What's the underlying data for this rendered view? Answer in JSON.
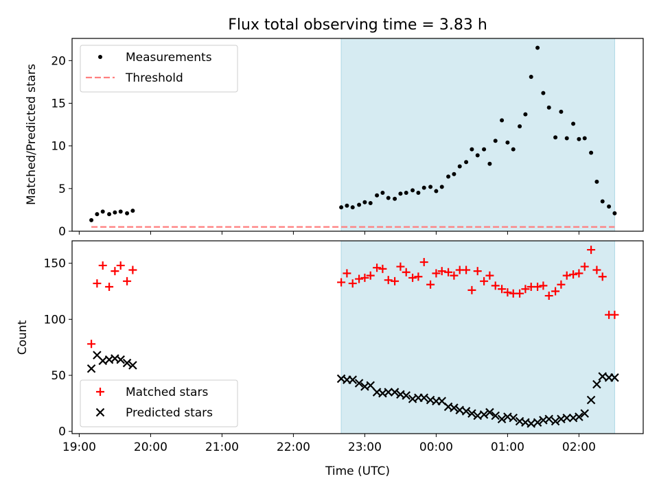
{
  "title": "Flux total observing time = 3.83 h",
  "colors": {
    "shade": "#add8e6",
    "threshold": "#ff7f7f",
    "measurements": "#000000",
    "matched": "#ff0000",
    "predicted": "#000000"
  },
  "chart_data": [
    {
      "type": "scatter",
      "panel": "top",
      "title": "Flux total observing time = 3.83 h",
      "xlabel": "",
      "ylabel": "Matched/Predicted stars",
      "xlim": [
        18.9,
        26.9
      ],
      "ylim": [
        0,
        22.6
      ],
      "yticks": [
        0,
        5,
        10,
        15,
        20
      ],
      "legend": "top-left",
      "shaded_interval": [
        22.67,
        26.5
      ],
      "series": [
        {
          "name": "Measurements",
          "marker": "dot",
          "x": [
            19.17,
            19.25,
            19.33,
            19.42,
            19.5,
            19.58,
            19.67,
            19.75,
            22.67,
            22.75,
            22.83,
            22.92,
            23.0,
            23.08,
            23.17,
            23.25,
            23.33,
            23.42,
            23.5,
            23.58,
            23.67,
            23.75,
            23.83,
            23.92,
            24.0,
            24.08,
            24.17,
            24.25,
            24.33,
            24.42,
            24.5,
            24.58,
            24.67,
            24.75,
            24.83,
            24.92,
            25.0,
            25.08,
            25.17,
            25.25,
            25.33,
            25.42,
            25.5,
            25.58,
            25.67,
            25.75,
            25.83,
            25.92,
            26.0,
            26.08,
            26.17,
            26.25,
            26.33,
            26.42,
            26.5
          ],
          "y": [
            1.3,
            2.0,
            2.3,
            2.0,
            2.2,
            2.3,
            2.1,
            2.4,
            2.8,
            3.0,
            2.8,
            3.1,
            3.4,
            3.3,
            4.2,
            4.5,
            3.9,
            3.8,
            4.4,
            4.5,
            4.8,
            4.5,
            5.1,
            5.2,
            4.7,
            5.2,
            6.4,
            6.7,
            7.6,
            8.1,
            9.6,
            8.9,
            9.6,
            7.9,
            10.6,
            13.0,
            10.4,
            9.6,
            12.3,
            13.7,
            18.1,
            21.5,
            16.2,
            14.5,
            11.0,
            14.0,
            10.9,
            12.6,
            10.8,
            10.9,
            9.2,
            5.8,
            3.5,
            2.9,
            2.1
          ]
        },
        {
          "name": "Threshold",
          "style": "dashed",
          "x": [
            19.17,
            26.5
          ],
          "y": [
            0.5,
            0.5
          ]
        }
      ]
    },
    {
      "type": "scatter",
      "panel": "bottom",
      "xlabel": "Time (UTC)",
      "ylabel": "Count",
      "xlim": [
        18.9,
        26.9
      ],
      "ylim": [
        -2,
        170
      ],
      "yticks": [
        0,
        50,
        100,
        150
      ],
      "xticks": [
        19,
        20,
        21,
        22,
        23,
        24,
        25,
        26
      ],
      "xticklabels": [
        "19:00",
        "20:00",
        "21:00",
        "22:00",
        "23:00",
        "00:00",
        "01:00",
        "02:00"
      ],
      "legend": "bottom-left",
      "shaded_interval": [
        22.67,
        26.5
      ],
      "series": [
        {
          "name": "Matched stars",
          "marker": "plus",
          "x": [
            19.17,
            19.25,
            19.33,
            19.42,
            19.5,
            19.58,
            19.67,
            19.75,
            22.67,
            22.75,
            22.83,
            22.92,
            23.0,
            23.08,
            23.17,
            23.25,
            23.33,
            23.42,
            23.5,
            23.58,
            23.67,
            23.75,
            23.83,
            23.92,
            24.0,
            24.08,
            24.17,
            24.25,
            24.33,
            24.42,
            24.5,
            24.58,
            24.67,
            24.75,
            24.83,
            24.92,
            25.0,
            25.08,
            25.17,
            25.25,
            25.33,
            25.42,
            25.5,
            25.58,
            25.67,
            25.75,
            25.83,
            25.92,
            26.0,
            26.08,
            26.17,
            26.25,
            26.33,
            26.42,
            26.5
          ],
          "y": [
            78,
            132,
            148,
            129,
            143,
            148,
            134,
            144,
            133,
            141,
            132,
            136,
            137,
            139,
            146,
            145,
            135,
            134,
            147,
            142,
            137,
            138,
            151,
            131,
            141,
            143,
            142,
            139,
            144,
            144,
            126,
            143,
            134,
            139,
            130,
            127,
            124,
            123,
            123,
            127,
            129,
            129,
            130,
            121,
            125,
            131,
            139,
            140,
            141,
            147,
            162,
            144,
            138,
            104,
            104
          ]
        },
        {
          "name": "Predicted stars",
          "marker": "x",
          "x": [
            19.17,
            19.25,
            19.33,
            19.42,
            19.5,
            19.58,
            19.67,
            19.75,
            22.67,
            22.75,
            22.83,
            22.92,
            23.0,
            23.08,
            23.17,
            23.25,
            23.33,
            23.42,
            23.5,
            23.58,
            23.67,
            23.75,
            23.83,
            23.92,
            24.0,
            24.08,
            24.17,
            24.25,
            24.33,
            24.42,
            24.5,
            24.58,
            24.67,
            24.75,
            24.83,
            24.92,
            25.0,
            25.08,
            25.17,
            25.25,
            25.33,
            25.42,
            25.5,
            25.58,
            25.67,
            25.75,
            25.83,
            25.92,
            26.0,
            26.08,
            26.17,
            26.25,
            26.33,
            26.42,
            26.5
          ],
          "y": [
            56,
            68,
            63,
            64,
            65,
            64,
            61,
            59,
            47,
            46,
            46,
            43,
            40,
            41,
            35,
            34,
            35,
            35,
            33,
            32,
            29,
            30,
            30,
            28,
            27,
            27,
            22,
            21,
            19,
            18,
            16,
            14,
            15,
            17,
            14,
            11,
            13,
            12,
            9,
            8,
            7,
            8,
            10,
            11,
            9,
            11,
            12,
            12,
            13,
            16,
            28,
            42,
            49,
            48,
            48
          ]
        }
      ]
    }
  ]
}
